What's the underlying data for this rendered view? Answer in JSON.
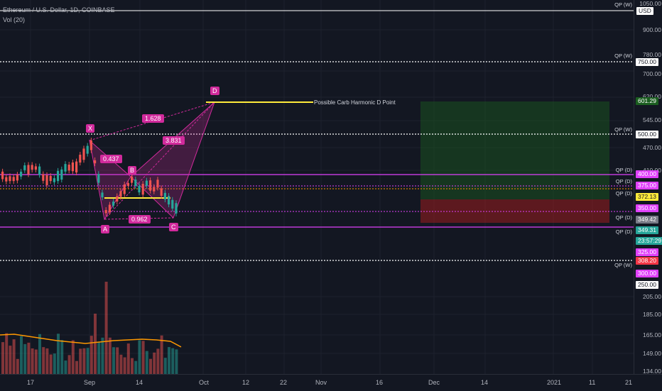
{
  "header": {
    "title": "Ethereum / U.S. Dollar, 1D, COINBASE",
    "volume_label": "Vol (20)"
  },
  "currency_badge": "USD",
  "price_axis": {
    "labels": [
      "1050.00",
      "900.00",
      "780.00",
      "700.00",
      "620.00",
      "545.00",
      "470.00",
      "410.00",
      "205.00",
      "185.00",
      "165.00",
      "149.00",
      "134.00"
    ]
  },
  "price_tags": [
    {
      "text": "750.00",
      "bg": "#ffffff",
      "fg": "#131722"
    },
    {
      "text": "601.29",
      "bg": "#1b5e20",
      "fg": "#ffffff"
    },
    {
      "text": "500.00",
      "bg": "#ffffff",
      "fg": "#131722"
    },
    {
      "text": "400.00",
      "bg": "#e040fb",
      "fg": "#ffffff"
    },
    {
      "text": "375.00",
      "bg": "#e040fb",
      "fg": "#ffffff"
    },
    {
      "text": "372.13",
      "bg": "#ffeb3b",
      "fg": "#131722"
    },
    {
      "text": "350.00",
      "bg": "#e040fb",
      "fg": "#ffffff"
    },
    {
      "text": "349.42",
      "bg": "#787b86",
      "fg": "#ffffff"
    },
    {
      "text": "349.31",
      "bg": "#26a69a",
      "fg": "#ffffff"
    },
    {
      "text": "23:57:29",
      "bg": "#26a69a",
      "fg": "#ffffff"
    },
    {
      "text": "325.00",
      "bg": "#e040fb",
      "fg": "#ffffff"
    },
    {
      "text": "308.20",
      "bg": "#f23645",
      "fg": "#ffffff"
    },
    {
      "text": "300.00",
      "bg": "#e040fb",
      "fg": "#ffffff"
    },
    {
      "text": "250.00",
      "bg": "#ffffff",
      "fg": "#131722"
    }
  ],
  "qp_labels": [
    "QP (W)",
    "QP (W)",
    "QP (W)",
    "QP (D)",
    "QP (D)",
    "QP (D)",
    "QP (D)",
    "QP (D)",
    "QP (W)"
  ],
  "pattern": {
    "points": [
      "X",
      "A",
      "B",
      "C",
      "D"
    ],
    "ratios": [
      "1.628",
      "0.437",
      "3.831",
      "0.962"
    ],
    "note": "Possible Carb Harmonic D Point"
  },
  "time_axis": {
    "labels": [
      "17",
      "Sep",
      "14",
      "Oct",
      "12",
      "22",
      "Nov",
      "16",
      "Dec",
      "14",
      "2021",
      "11",
      "21"
    ]
  },
  "colors": {
    "background": "#131722",
    "up": "#26a69a",
    "down": "#ef5350",
    "pattern": "#d12a9c",
    "level_magenta": "#e040fb",
    "level_yellow": "#ffeb3b",
    "long_profit": "#1b5e20",
    "long_loss": "#b71c1c"
  }
}
